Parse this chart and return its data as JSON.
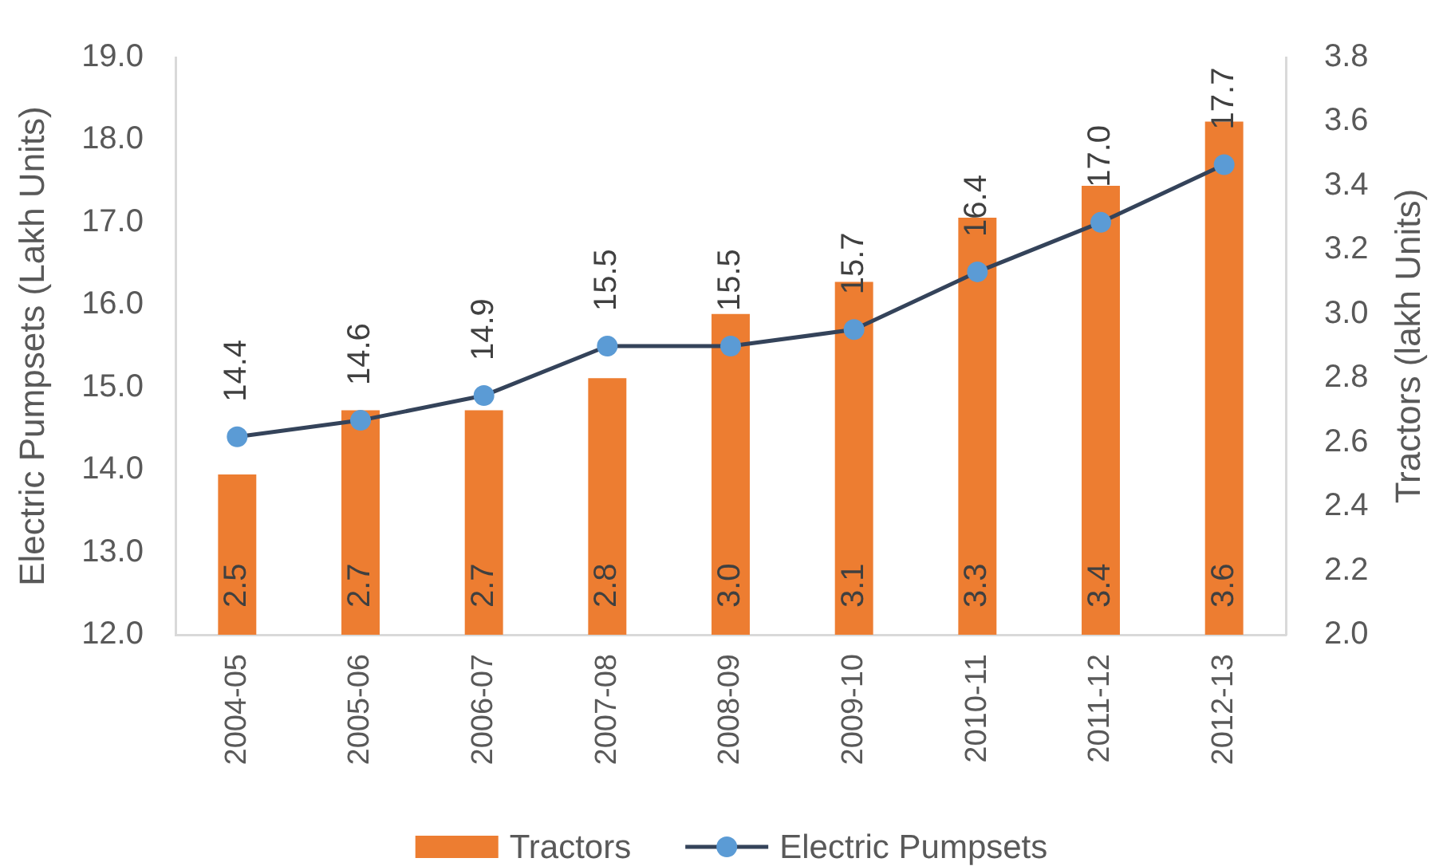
{
  "chart_data": {
    "type": "bar",
    "categories": [
      "2004-05",
      "2005-06",
      "2006-07",
      "2007-08",
      "2008-09",
      "2009-10",
      "2010-11",
      "2011-12",
      "2012-13"
    ],
    "ylabel": "Electric Pumpsets (Lakh Units)",
    "y2label": "Tractors (lakh Units)",
    "ylim": [
      12,
      19
    ],
    "yticks": [
      {
        "value": 12,
        "label": "12.0"
      },
      {
        "value": 13,
        "label": "13.0"
      },
      {
        "value": 14,
        "label": "14.0"
      },
      {
        "value": 15,
        "label": "15.0"
      },
      {
        "value": 16,
        "label": "16.0"
      },
      {
        "value": 17,
        "label": "17.0"
      },
      {
        "value": 18,
        "label": "18.0"
      },
      {
        "value": 19,
        "label": "19.0"
      }
    ],
    "y2lim": [
      2,
      3.8
    ],
    "y2ticks": [
      {
        "value": 2,
        "label": "2.0"
      },
      2.2,
      2.4,
      2.6,
      2.8,
      {
        "value": 3,
        "label": "3.0"
      },
      3.2,
      3.4,
      3.6,
      3.8
    ],
    "series": [
      {
        "name": "Tractors",
        "axis": "y2",
        "color": "#ed7d31",
        "values": [
          2.5,
          2.7,
          2.7,
          2.8,
          3.0,
          3.1,
          3.3,
          3.4,
          3.6
        ],
        "value_labels": [
          "2.5",
          "2.7",
          "2.7",
          "2.8",
          "3.0",
          "3.1",
          "3.3",
          "3.4",
          "3.6"
        ]
      },
      {
        "name": "Electric Pumpsets",
        "type": "line",
        "color": "#34435a",
        "colors": [
          "#5b9bd5",
          "#5b9bd5",
          "#5b9bd5",
          "#5b9bd5",
          "#5b9bd5",
          "#5b9bd5",
          "#5b9bd5",
          "#5b9bd5",
          "#5b9bd5"
        ],
        "values": [
          14.4,
          14.6,
          14.9,
          15.5,
          15.5,
          15.7,
          16.4,
          17.0,
          17.7
        ],
        "value_labels": [
          "14.4",
          "14.6",
          "14.9",
          "15.5",
          "15.5",
          "15.7",
          "16.4",
          "17.0",
          "17.7"
        ]
      }
    ],
    "marker": "circle",
    "line_style": "solid",
    "grid": false,
    "legend": "bottom"
  }
}
